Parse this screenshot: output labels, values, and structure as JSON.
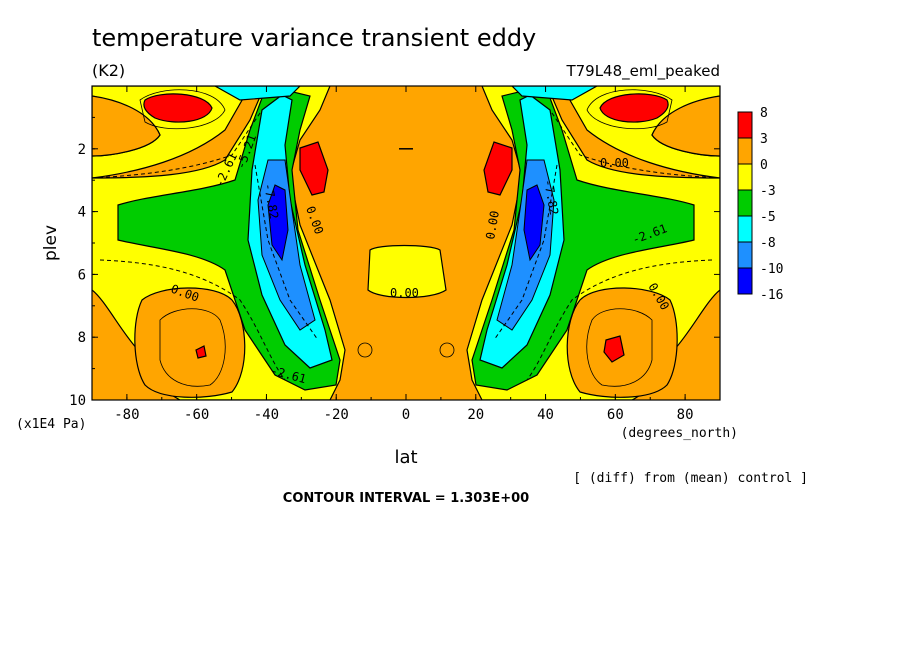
{
  "chart_data": {
    "type": "heatmap",
    "title": "temperature variance transient eddy",
    "units": "(K2)",
    "run_name": "T79L48_eml_peaked",
    "xlabel": "lat",
    "xunits": "(degrees_north)",
    "ylabel": "plev",
    "yunits": "(x1E4 Pa)",
    "x_ticks": [
      -80,
      -60,
      -40,
      -20,
      0,
      20,
      40,
      60,
      80
    ],
    "y_ticks": [
      2,
      4,
      6,
      8,
      10
    ],
    "xlim": [
      -90,
      90
    ],
    "ylim": [
      10,
      0
    ],
    "diff_note": "[ (diff) from (mean) control ]",
    "contour_interval": "CONTOUR INTERVAL = 1.303E+00",
    "contour_labels": [
      "0.00",
      "-2.61",
      "-5.21",
      "-7.82"
    ],
    "colorbar": {
      "levels": [
        "8",
        "3",
        "0",
        "-3",
        "-5",
        "-8",
        "-10",
        "-16"
      ],
      "colors": [
        "#ff0000",
        "#ffa500",
        "#ffff00",
        "#00cc00",
        "#00ffff",
        "#1e90ff",
        "#0000ff"
      ]
    },
    "palette": {
      "red": "#ff0000",
      "orange": "#ffa500",
      "yellow": "#ffff00",
      "green": "#00cc00",
      "cyan": "#00ffff",
      "blue": "#1e90ff",
      "darkblue": "#0000ff"
    }
  }
}
